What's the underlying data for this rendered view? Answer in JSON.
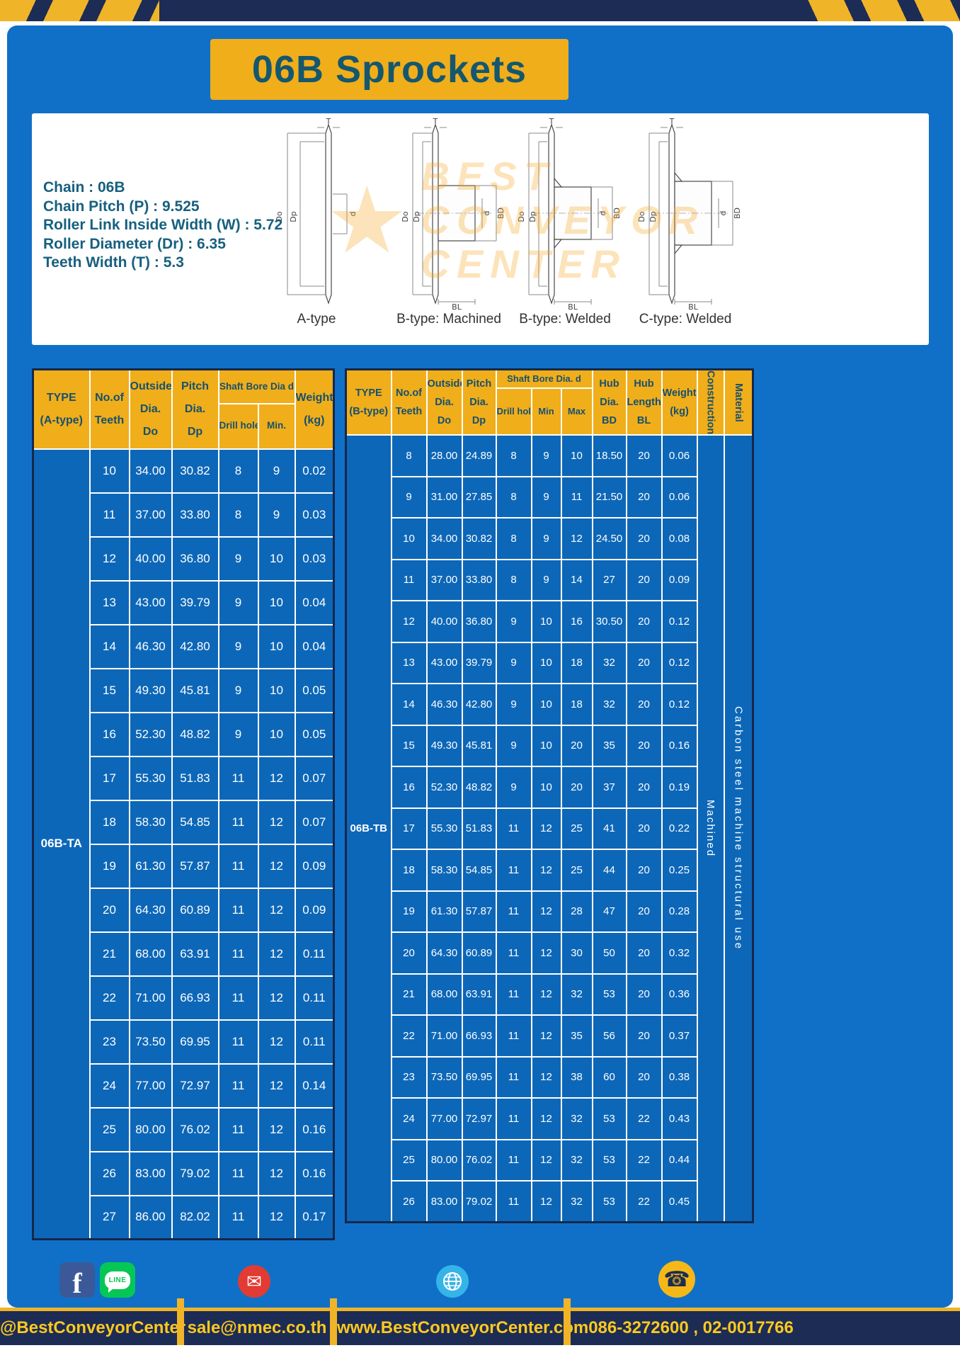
{
  "banner": {
    "title": "06B Sprockets"
  },
  "colors": {
    "panel_blue": "#1070C8",
    "cell_blue": "#0D67B8",
    "accent_yellow": "#F0AE1B",
    "navy": "#1C2C54",
    "teal_text": "#14576F",
    "footer_text_yellow": "#FFC91E",
    "watermark_orange": "#F6A41C"
  },
  "specs": [
    "Chain : 06B",
    "Chain Pitch (P) : 9.525",
    "Roller Link Inside Width (W) : 5.72",
    "Roller Diameter (Dr) : 6.35",
    "Teeth Width (T) : 5.3"
  ],
  "figures": [
    {
      "label": "A-type",
      "dim_t": "T",
      "dim_do": "Do",
      "dim_dp": "Dp",
      "dim_d": "d"
    },
    {
      "label": "B-type: Machined",
      "dim_t": "T",
      "dim_do": "Do",
      "dim_dp": "Dp",
      "dim_d": "d",
      "dim_bd": "BD",
      "dim_bl": "BL"
    },
    {
      "label": "B-type: Welded",
      "dim_t": "T",
      "dim_do": "Do",
      "dim_dp": "Dp",
      "dim_d": "d",
      "dim_bd": "BD",
      "dim_bl": "BL"
    },
    {
      "label": "C-type: Welded",
      "dim_t": "T",
      "dim_do": "Do",
      "dim_dp": "Dp",
      "dim_d": "d",
      "dim_bd": "BD",
      "dim_bl": "BL"
    }
  ],
  "watermark": {
    "star": "★",
    "line1": "BEST",
    "line2": "CONVEYOR",
    "line3": "CENTER"
  },
  "table_a": {
    "headers": {
      "type": "TYPE\n(A-type)",
      "teeth": "No.of\nTeeth",
      "outside": "Outside\nDia.\nDo",
      "pitch": "Pitch Dia.\nDp",
      "bore_group": "Shaft Bore Dia d",
      "drill": "Drill hole",
      "min": "Min.",
      "weight": "Weight\n(kg)"
    },
    "type_value": "06B-TA",
    "rows": [
      [
        "10",
        "34.00",
        "30.82",
        "8",
        "9",
        "0.02"
      ],
      [
        "11",
        "37.00",
        "33.80",
        "8",
        "9",
        "0.03"
      ],
      [
        "12",
        "40.00",
        "36.80",
        "9",
        "10",
        "0.03"
      ],
      [
        "13",
        "43.00",
        "39.79",
        "9",
        "10",
        "0.04"
      ],
      [
        "14",
        "46.30",
        "42.80",
        "9",
        "10",
        "0.04"
      ],
      [
        "15",
        "49.30",
        "45.81",
        "9",
        "10",
        "0.05"
      ],
      [
        "16",
        "52.30",
        "48.82",
        "9",
        "10",
        "0.05"
      ],
      [
        "17",
        "55.30",
        "51.83",
        "11",
        "12",
        "0.07"
      ],
      [
        "18",
        "58.30",
        "54.85",
        "11",
        "12",
        "0.07"
      ],
      [
        "19",
        "61.30",
        "57.87",
        "11",
        "12",
        "0.09"
      ],
      [
        "20",
        "64.30",
        "60.89",
        "11",
        "12",
        "0.09"
      ],
      [
        "21",
        "68.00",
        "63.91",
        "11",
        "12",
        "0.11"
      ],
      [
        "22",
        "71.00",
        "66.93",
        "11",
        "12",
        "0.11"
      ],
      [
        "23",
        "73.50",
        "69.95",
        "11",
        "12",
        "0.11"
      ],
      [
        "24",
        "77.00",
        "72.97",
        "11",
        "12",
        "0.14"
      ],
      [
        "25",
        "80.00",
        "76.02",
        "11",
        "12",
        "0.16"
      ],
      [
        "26",
        "83.00",
        "79.02",
        "11",
        "12",
        "0.16"
      ],
      [
        "27",
        "86.00",
        "82.02",
        "11",
        "12",
        "0.17"
      ]
    ]
  },
  "table_b": {
    "headers": {
      "type": "TYPE\n(B-type)",
      "teeth": "No.of\nTeeth",
      "outside": "Outside\nDia.\nDo",
      "pitch": "Pitch\nDia.\nDp",
      "bore_group": "Shaft Bore Dia. d",
      "drill": "Drill hole",
      "min": "Min",
      "max": "Max",
      "hub_dia": "Hub\nDia.\nBD",
      "hub_len": "Hub\nLength\nBL",
      "weight": "Weight\n(kg)",
      "construction": "Construction",
      "material": "Material"
    },
    "type_value": "06B-TB",
    "construction_value": "Machined",
    "material_value": "Carbon steel machine structural use",
    "rows": [
      [
        "8",
        "28.00",
        "24.89",
        "8",
        "9",
        "10",
        "18.50",
        "20",
        "0.06"
      ],
      [
        "9",
        "31.00",
        "27.85",
        "8",
        "9",
        "11",
        "21.50",
        "20",
        "0.06"
      ],
      [
        "10",
        "34.00",
        "30.82",
        "8",
        "9",
        "12",
        "24.50",
        "20",
        "0.08"
      ],
      [
        "11",
        "37.00",
        "33.80",
        "8",
        "9",
        "14",
        "27",
        "20",
        "0.09"
      ],
      [
        "12",
        "40.00",
        "36.80",
        "9",
        "10",
        "16",
        "30.50",
        "20",
        "0.12"
      ],
      [
        "13",
        "43.00",
        "39.79",
        "9",
        "10",
        "18",
        "32",
        "20",
        "0.12"
      ],
      [
        "14",
        "46.30",
        "42.80",
        "9",
        "10",
        "18",
        "32",
        "20",
        "0.12"
      ],
      [
        "15",
        "49.30",
        "45.81",
        "9",
        "10",
        "20",
        "35",
        "20",
        "0.16"
      ],
      [
        "16",
        "52.30",
        "48.82",
        "9",
        "10",
        "20",
        "37",
        "20",
        "0.19"
      ],
      [
        "17",
        "55.30",
        "51.83",
        "11",
        "12",
        "25",
        "41",
        "20",
        "0.22"
      ],
      [
        "18",
        "58.30",
        "54.85",
        "11",
        "12",
        "25",
        "44",
        "20",
        "0.25"
      ],
      [
        "19",
        "61.30",
        "57.87",
        "11",
        "12",
        "28",
        "47",
        "20",
        "0.28"
      ],
      [
        "20",
        "64.30",
        "60.89",
        "11",
        "12",
        "30",
        "50",
        "20",
        "0.32"
      ],
      [
        "21",
        "68.00",
        "63.91",
        "11",
        "12",
        "32",
        "53",
        "20",
        "0.36"
      ],
      [
        "22",
        "71.00",
        "66.93",
        "11",
        "12",
        "35",
        "56",
        "20",
        "0.37"
      ],
      [
        "23",
        "73.50",
        "69.95",
        "11",
        "12",
        "38",
        "60",
        "20",
        "0.38"
      ],
      [
        "24",
        "77.00",
        "72.97",
        "11",
        "12",
        "32",
        "53",
        "22",
        "0.43"
      ],
      [
        "25",
        "80.00",
        "76.02",
        "11",
        "12",
        "32",
        "53",
        "22",
        "0.44"
      ],
      [
        "26",
        "83.00",
        "79.02",
        "11",
        "12",
        "32",
        "53",
        "22",
        "0.45"
      ]
    ]
  },
  "footer": {
    "items": [
      "@BestConveyorCenter",
      "sale@nmec.co.th",
      "www.BestConveyorCenter.com",
      "086-3272600 , 02-0017766"
    ],
    "icons": {
      "facebook": "f",
      "line": "LINE",
      "mail": "✉",
      "phone": "☎"
    }
  }
}
